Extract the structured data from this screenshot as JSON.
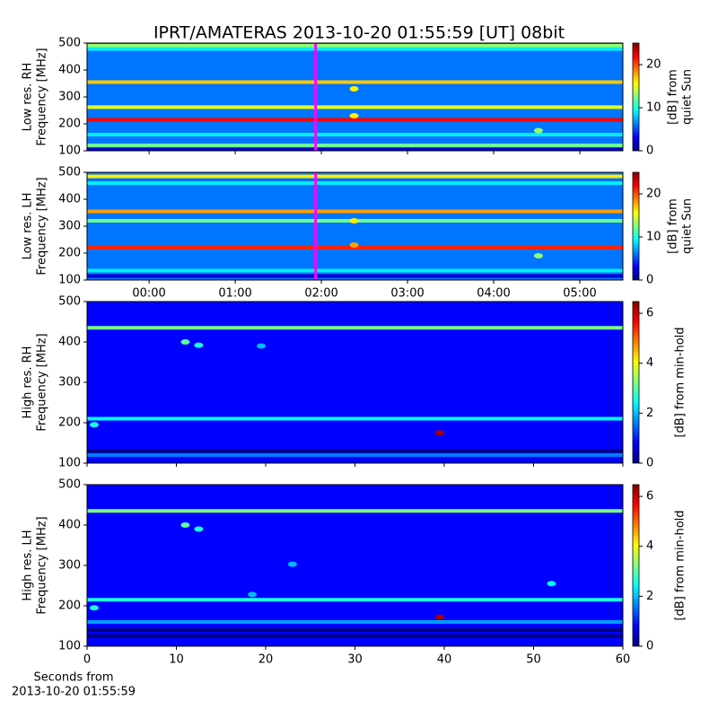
{
  "title": "IPRT/AMATERAS 2013-10-20 01:55:59 [UT]   08bit",
  "chart_data": [
    {
      "type": "heatmap",
      "ylabel": [
        "Low res. RH",
        "Frequency [MHz]"
      ],
      "xlim": [
        -0.72,
        5.5
      ],
      "ylim": [
        100,
        500
      ],
      "yticks": [
        100,
        200,
        300,
        400,
        500
      ],
      "clim": [
        0,
        25
      ],
      "cticks": [
        0,
        10,
        20
      ],
      "clabel": [
        "[dB] from",
        "quiet Sun"
      ],
      "background_level": 6,
      "marker_x": 1.933,
      "marker_color": "#ff00ff",
      "bands": [
        {
          "freq": 490,
          "level": 13
        },
        {
          "freq": 478,
          "level": 9
        },
        {
          "freq": 355,
          "level": 17
        },
        {
          "freq": 262,
          "level": 15
        },
        {
          "freq": 215,
          "level": 22
        },
        {
          "freq": 160,
          "level": 9
        },
        {
          "freq": 120,
          "level": 12
        },
        {
          "freq": 105,
          "level": 2
        }
      ],
      "spots": [
        {
          "x": 2.38,
          "y": 330,
          "level": 16
        },
        {
          "x": 2.38,
          "y": 230,
          "level": 16
        },
        {
          "x": 4.52,
          "y": 175,
          "level": 13
        }
      ]
    },
    {
      "type": "heatmap",
      "ylabel": [
        "Low res. LH",
        "Frequency [MHz]"
      ],
      "xlim": [
        -0.72,
        5.5
      ],
      "ylim": [
        100,
        500
      ],
      "yticks": [
        100,
        200,
        300,
        400,
        500
      ],
      "xticks": [
        {
          "value": 0,
          "label": "00:00"
        },
        {
          "value": 1,
          "label": "01:00"
        },
        {
          "value": 2,
          "label": "02:00"
        },
        {
          "value": 3,
          "label": "03:00"
        },
        {
          "value": 4,
          "label": "04:00"
        },
        {
          "value": 5,
          "label": "05:00"
        }
      ],
      "clim": [
        0,
        25
      ],
      "cticks": [
        0,
        10,
        20
      ],
      "clabel": [
        "[dB] from",
        "quiet Sun"
      ],
      "background_level": 6,
      "marker_x": 1.933,
      "marker_color": "#ff00ff",
      "bands": [
        {
          "freq": 485,
          "level": 16
        },
        {
          "freq": 460,
          "level": 9
        },
        {
          "freq": 355,
          "level": 18
        },
        {
          "freq": 320,
          "level": 12
        },
        {
          "freq": 220,
          "level": 21
        },
        {
          "freq": 135,
          "level": 9
        },
        {
          "freq": 115,
          "level": 2
        }
      ],
      "spots": [
        {
          "x": 2.38,
          "y": 320,
          "level": 16
        },
        {
          "x": 2.38,
          "y": 230,
          "level": 18
        },
        {
          "x": 4.52,
          "y": 190,
          "level": 13
        }
      ]
    },
    {
      "type": "heatmap",
      "ylabel": [
        "High res. RH",
        "Frequency [MHz]"
      ],
      "xlim": [
        0,
        60
      ],
      "ylim": [
        100,
        500
      ],
      "yticks": [
        100,
        200,
        300,
        400,
        500
      ],
      "clim": [
        0,
        6.47
      ],
      "cticks": [
        0,
        2,
        4,
        6
      ],
      "clabel": [
        "[dB] from min-hold"
      ],
      "background_level": 0.8,
      "bands": [
        {
          "freq": 435,
          "level": 3.2
        },
        {
          "freq": 210,
          "level": 2.4
        },
        {
          "freq": 130,
          "level": 0
        },
        {
          "freq": 120,
          "level": 1.6
        }
      ],
      "spots": [
        {
          "x": 11,
          "y": 400,
          "level": 3
        },
        {
          "x": 12.5,
          "y": 392,
          "level": 2.6
        },
        {
          "x": 19.5,
          "y": 390,
          "level": 2
        },
        {
          "x": 0.8,
          "y": 195,
          "level": 2.6
        },
        {
          "x": 39.5,
          "y": 175,
          "level": 6.2
        }
      ]
    },
    {
      "type": "heatmap",
      "ylabel": [
        "High res. LH",
        "Frequency [MHz]"
      ],
      "xlim": [
        0,
        60
      ],
      "ylim": [
        100,
        500
      ],
      "yticks": [
        100,
        200,
        300,
        400,
        500
      ],
      "xticks": [
        0,
        10,
        20,
        30,
        40,
        50,
        60
      ],
      "xlabel": [
        "Seconds from",
        "2013-10-20 01:55:59"
      ],
      "clim": [
        0,
        6.47
      ],
      "cticks": [
        0,
        2,
        4,
        6
      ],
      "clabel": [
        "[dB] from min-hold"
      ],
      "background_level": 0.8,
      "bands": [
        {
          "freq": 435,
          "level": 3.2
        },
        {
          "freq": 215,
          "level": 2.6
        },
        {
          "freq": 160,
          "level": 1.8
        },
        {
          "freq": 140,
          "level": 0
        },
        {
          "freq": 125,
          "level": 0
        }
      ],
      "spots": [
        {
          "x": 11,
          "y": 400,
          "level": 3
        },
        {
          "x": 12.5,
          "y": 390,
          "level": 2.6
        },
        {
          "x": 23,
          "y": 303,
          "level": 2
        },
        {
          "x": 52,
          "y": 255,
          "level": 2.4
        },
        {
          "x": 18.5,
          "y": 228,
          "level": 2
        },
        {
          "x": 0.8,
          "y": 195,
          "level": 2.6
        },
        {
          "x": 39.5,
          "y": 172,
          "level": 6.2
        }
      ]
    }
  ]
}
